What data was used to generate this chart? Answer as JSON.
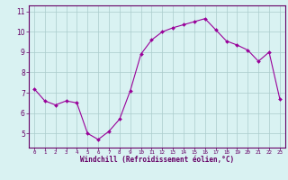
{
  "x": [
    0,
    1,
    2,
    3,
    4,
    5,
    6,
    7,
    8,
    9,
    10,
    11,
    12,
    13,
    14,
    15,
    16,
    17,
    18,
    19,
    20,
    21,
    22,
    23
  ],
  "y": [
    7.2,
    6.6,
    6.4,
    6.6,
    6.5,
    5.0,
    4.7,
    5.1,
    5.7,
    7.1,
    8.9,
    9.6,
    10.0,
    10.2,
    10.35,
    10.5,
    10.65,
    10.1,
    9.55,
    9.35,
    9.1,
    8.55,
    9.0,
    6.7
  ],
  "line_color": "#990099",
  "marker": "D",
  "marker_size": 2.0,
  "bg_color": "#d9f2f2",
  "grid_color": "#aacccc",
  "xlabel": "Windchill (Refroidissement éolien,°C)",
  "xlabel_color": "#660066",
  "ylabel_ticks": [
    5,
    6,
    7,
    8,
    9,
    10,
    11
  ],
  "xtick_labels": [
    "0",
    "1",
    "2",
    "3",
    "4",
    "5",
    "6",
    "7",
    "8",
    "9",
    "10",
    "11",
    "12",
    "13",
    "14",
    "15",
    "16",
    "17",
    "18",
    "19",
    "20",
    "21",
    "22",
    "23"
  ],
  "xlim": [
    -0.5,
    23.5
  ],
  "ylim": [
    4.3,
    11.3
  ],
  "tick_color": "#660066",
  "spine_color": "#660066"
}
